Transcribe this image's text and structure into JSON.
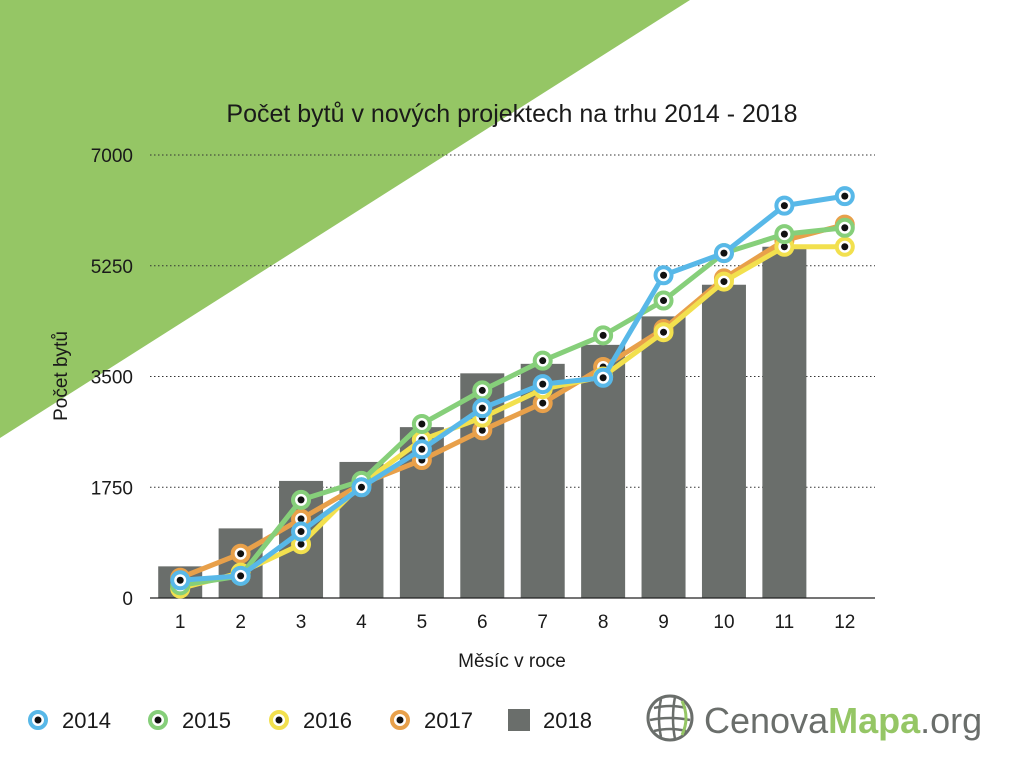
{
  "chart_data": {
    "type": "bar+line",
    "title": "Počet bytů v nových projektech na trhu 2014 - 2018",
    "xlabel": "Měsíc v roce",
    "ylabel": "Počet bytů",
    "categories": [
      "1",
      "2",
      "3",
      "4",
      "5",
      "6",
      "7",
      "8",
      "9",
      "10",
      "11",
      "12"
    ],
    "ylim": [
      0,
      7000
    ],
    "yticks": [
      "0",
      "1750",
      "3500",
      "5250",
      "7000"
    ],
    "grid": "horizontal dotted",
    "legend": "bottom",
    "bar_series": {
      "name": "2018",
      "color": "#6a6e6b",
      "values": [
        500,
        1100,
        1850,
        2150,
        2700,
        3550,
        3700,
        4000,
        4450,
        4950,
        5550,
        null
      ]
    },
    "series": [
      {
        "name": "2017",
        "color": "#e8a04a",
        "values": [
          320,
          700,
          1250,
          1800,
          2180,
          2650,
          3080,
          3650,
          4250,
          5050,
          5650,
          5900
        ]
      },
      {
        "name": "2016",
        "color": "#f2e04e",
        "values": [
          150,
          400,
          850,
          1800,
          2500,
          2850,
          3300,
          3500,
          4200,
          5000,
          5550,
          5550
        ]
      },
      {
        "name": "2015",
        "color": "#86cf7a",
        "values": [
          200,
          350,
          1550,
          1850,
          2750,
          3280,
          3750,
          4150,
          4700,
          5450,
          5750,
          5850
        ]
      },
      {
        "name": "2014",
        "color": "#58b8e8",
        "values": [
          280,
          350,
          1050,
          1750,
          2350,
          3000,
          3380,
          3480,
          5100,
          5450,
          6200,
          6350
        ]
      }
    ]
  },
  "legend": {
    "items": [
      {
        "label": "2014",
        "kind": "line",
        "color": "#58b8e8"
      },
      {
        "label": "2015",
        "kind": "line",
        "color": "#86cf7a"
      },
      {
        "label": "2016",
        "kind": "line",
        "color": "#f2e04e"
      },
      {
        "label": "2017",
        "kind": "line",
        "color": "#e8a04a"
      },
      {
        "label": "2018",
        "kind": "bar",
        "color": "#6a6e6b"
      }
    ]
  },
  "branding": {
    "logo_prefix": "Cenova",
    "logo_main": "Mapa",
    "logo_suffix": ".org",
    "accent_color": "#95c665",
    "icon": "globe-grid-icon"
  }
}
